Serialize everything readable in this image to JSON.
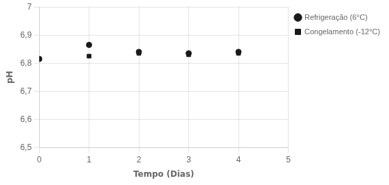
{
  "chart_data": {
    "type": "scatter",
    "xlabel": "Tempo (Dias)",
    "ylabel": "pH",
    "x": [
      0,
      1,
      2,
      3,
      4
    ],
    "series": [
      {
        "name": "Refrigeração (6°C)",
        "color": "#1a1a1a",
        "marker": "circle",
        "values": [
          6.815,
          6.865,
          6.84,
          6.835,
          6.84
        ]
      },
      {
        "name": "Congelamento (-12°C)",
        "color": "#1a1a1a",
        "marker": "square",
        "values": [
          6.815,
          6.825,
          6.835,
          6.83,
          6.835
        ]
      }
    ],
    "xlim": [
      0,
      5
    ],
    "ylim": [
      6.5,
      7.0
    ],
    "xticks": [
      0,
      1,
      2,
      3,
      4,
      5
    ],
    "yticks": [
      {
        "value": 6.5,
        "label": "6,5"
      },
      {
        "value": 6.6,
        "label": "6,6"
      },
      {
        "value": 6.7,
        "label": "6,7"
      },
      {
        "value": 6.8,
        "label": "6,8"
      },
      {
        "value": 6.9,
        "label": "6,9"
      },
      7.0
    ],
    "grid": true,
    "legend": "right"
  }
}
